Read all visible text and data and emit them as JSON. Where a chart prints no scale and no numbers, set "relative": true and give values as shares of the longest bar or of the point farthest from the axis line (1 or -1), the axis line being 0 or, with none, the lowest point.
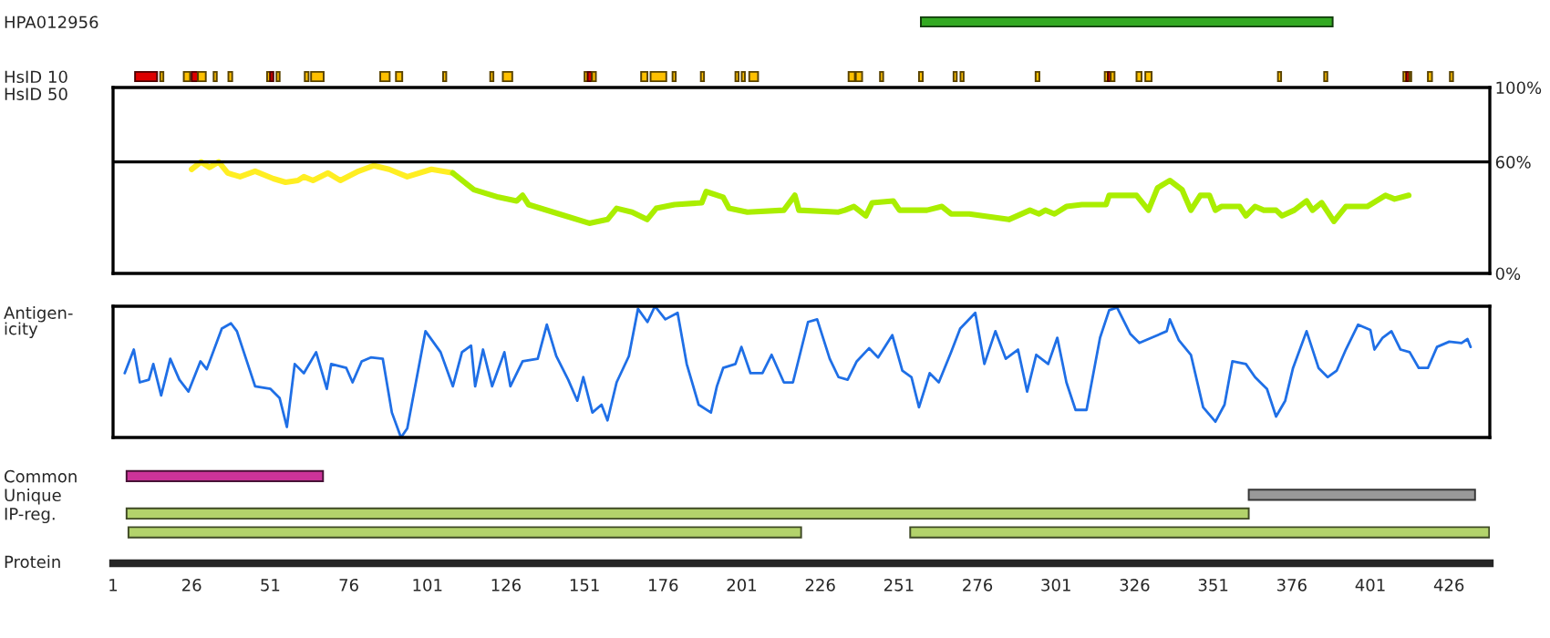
{
  "chart_data": [
    {
      "type": "bar",
      "orientation": "horizontal",
      "categories": [
        "HPA012956",
        "HsID 10"
      ],
      "xlim": [
        1,
        439
      ],
      "tick_labels": "y",
      "series": [
        {
          "color": "#33aa22",
          "values": [
            131,
            null
          ],
          "base": [
            258,
            null
          ]
        },
        {
          "color": "#dd0000",
          "values": [
            null,
            7
          ],
          "base": [
            null,
            8
          ]
        },
        {
          "color": "#ffc000",
          "values": [
            null,
            1
          ],
          "base": [
            null,
            16
          ]
        },
        {
          "color": "#ffc000",
          "values": [
            null,
            2
          ],
          "base": [
            null,
            23.5
          ]
        },
        {
          "color": "#dd0000",
          "values": [
            null,
            2
          ],
          "base": [
            null,
            26
          ]
        },
        {
          "color": "#ffc000",
          "values": [
            null,
            2.5
          ],
          "base": [
            null,
            28
          ]
        },
        {
          "color": "#ffc000",
          "values": [
            null,
            1
          ],
          "base": [
            null,
            33
          ]
        },
        {
          "color": "#ffc000",
          "values": [
            null,
            1.2
          ],
          "base": [
            null,
            37.7
          ]
        },
        {
          "color": "#ffc000",
          "values": [
            null,
            1
          ],
          "base": [
            null,
            50
          ]
        },
        {
          "color": "#dd0000",
          "values": [
            null,
            1
          ],
          "base": [
            null,
            51
          ]
        },
        {
          "color": "#ffc000",
          "values": [
            null,
            1
          ],
          "base": [
            null,
            53
          ]
        },
        {
          "color": "#ffc000",
          "values": [
            null,
            1.2
          ],
          "base": [
            null,
            62
          ]
        },
        {
          "color": "#ffc000",
          "values": [
            null,
            4
          ],
          "base": [
            null,
            64
          ]
        },
        {
          "color": "#ffc000",
          "values": [
            null,
            3
          ],
          "base": [
            null,
            86
          ]
        },
        {
          "color": "#ffc000",
          "values": [
            null,
            2
          ],
          "base": [
            null,
            91
          ]
        },
        {
          "color": "#ffc000",
          "values": [
            null,
            1
          ],
          "base": [
            null,
            106
          ]
        },
        {
          "color": "#ffc000",
          "values": [
            null,
            1
          ],
          "base": [
            null,
            121
          ]
        },
        {
          "color": "#ffc000",
          "values": [
            null,
            3
          ],
          "base": [
            null,
            125
          ]
        },
        {
          "color": "#ffc000",
          "values": [
            null,
            1
          ],
          "base": [
            null,
            151
          ]
        },
        {
          "color": "#dd0000",
          "values": [
            null,
            1.3
          ],
          "base": [
            null,
            152
          ]
        },
        {
          "color": "#ffc000",
          "values": [
            null,
            1.2
          ],
          "base": [
            null,
            153.4
          ]
        },
        {
          "color": "#ffc000",
          "values": [
            null,
            2
          ],
          "base": [
            null,
            169
          ]
        },
        {
          "color": "#ffc000",
          "values": [
            null,
            5
          ],
          "base": [
            null,
            172
          ]
        },
        {
          "color": "#ffc000",
          "values": [
            null,
            1
          ],
          "base": [
            null,
            179
          ]
        },
        {
          "color": "#ffc000",
          "values": [
            null,
            1
          ],
          "base": [
            null,
            188
          ]
        },
        {
          "color": "#ffc000",
          "values": [
            null,
            1
          ],
          "base": [
            null,
            199
          ]
        },
        {
          "color": "#ffc000",
          "values": [
            null,
            1
          ],
          "base": [
            null,
            201
          ]
        },
        {
          "color": "#ffc000",
          "values": [
            null,
            2.8
          ],
          "base": [
            null,
            203.4
          ]
        },
        {
          "color": "#ffc000",
          "values": [
            null,
            2
          ],
          "base": [
            null,
            235
          ]
        },
        {
          "color": "#ffc000",
          "values": [
            null,
            2
          ],
          "base": [
            null,
            237.3
          ]
        },
        {
          "color": "#ffc000",
          "values": [
            null,
            1
          ],
          "base": [
            null,
            245
          ]
        },
        {
          "color": "#ffc000",
          "values": [
            null,
            1.2
          ],
          "base": [
            null,
            257.4
          ]
        },
        {
          "color": "#ffc000",
          "values": [
            null,
            1
          ],
          "base": [
            null,
            268.4
          ]
        },
        {
          "color": "#ffc000",
          "values": [
            null,
            1
          ],
          "base": [
            null,
            270.6
          ]
        },
        {
          "color": "#ffc000",
          "values": [
            null,
            1.2
          ],
          "base": [
            null,
            294.5
          ]
        },
        {
          "color": "#ffc000",
          "values": [
            null,
            1
          ],
          "base": [
            null,
            316.5
          ]
        },
        {
          "color": "#dd0000",
          "values": [
            null,
            1
          ],
          "base": [
            null,
            317.5
          ]
        },
        {
          "color": "#ffc000",
          "values": [
            null,
            1.2
          ],
          "base": [
            null,
            318.4
          ]
        },
        {
          "color": "#ffc000",
          "values": [
            null,
            1.6
          ],
          "base": [
            null,
            326.6
          ]
        },
        {
          "color": "#ffc000",
          "values": [
            null,
            2
          ],
          "base": [
            null,
            329.4
          ]
        },
        {
          "color": "#ffc000",
          "values": [
            null,
            1
          ],
          "base": [
            null,
            371.6
          ]
        },
        {
          "color": "#ffc000",
          "values": [
            null,
            1
          ],
          "base": [
            null,
            386.3
          ]
        },
        {
          "color": "#ffc000",
          "values": [
            null,
            1
          ],
          "base": [
            null,
            411.5
          ]
        },
        {
          "color": "#dd0000",
          "values": [
            null,
            1
          ],
          "base": [
            null,
            412.4
          ]
        },
        {
          "color": "#ffc000",
          "values": [
            null,
            0.6
          ],
          "base": [
            null,
            413.4
          ]
        },
        {
          "color": "#ffc000",
          "values": [
            null,
            1.3
          ],
          "base": [
            null,
            419.3
          ]
        },
        {
          "color": "#ffc000",
          "values": [
            null,
            1
          ],
          "base": [
            null,
            426.3
          ]
        }
      ]
    },
    {
      "type": "line",
      "ylabel": "HsID 50",
      "xlim": [
        1,
        439
      ],
      "ylim": [
        0,
        100
      ],
      "yticks": [
        {
          "value": 0,
          "label": "0%"
        },
        {
          "value": 60,
          "label": "60%"
        },
        {
          "value": 100,
          "label": "100%"
        }
      ],
      "tick_labels": "y",
      "ref_lines": [
        {
          "axis": "y",
          "value": 60,
          "color": "#000000"
        }
      ],
      "series": [
        {
          "color": "#ffee22",
          "x": [
            26,
            29,
            31.7,
            34.6,
            37.5,
            41.4,
            46.2,
            52,
            55.9,
            59.8,
            61.7,
            64.6,
            69.4,
            73.3,
            79.1,
            84,
            88.8,
            94.6,
            102.3,
            109.1
          ],
          "values": [
            56,
            60,
            57,
            60,
            54,
            52,
            55,
            51,
            49,
            50,
            52,
            50,
            54,
            50,
            55,
            58,
            56,
            52,
            56,
            54
          ]
        },
        {
          "color": "#aaee00",
          "x": [
            109.1,
            115.8,
            123.6,
            129.4,
            131.3,
            133.2,
            142.9,
            152.5,
            158.3,
            161.2,
            166.1,
            170.9,
            173.8,
            179.6,
            188.3,
            189.7,
            195.1,
            197,
            202.8,
            214.4,
            217.9,
            219.2,
            231.8,
            233.8,
            236.7,
            240.5,
            242.5,
            249.2,
            251.2,
            259.9,
            264.7,
            267.6,
            273.4,
            286,
            292.7,
            295.6,
            297.6,
            300.5,
            304.3,
            309.2,
            316.9,
            317.9,
            326.6,
            330.4,
            333.3,
            337.2,
            341.1,
            343.9,
            346.9,
            349.8,
            351.7,
            353.6,
            359.4,
            361.4,
            364.3,
            367.1,
            371,
            372.9,
            376.8,
            380.7,
            382.6,
            385.5,
            389.4,
            393.2,
            400,
            405.8,
            408.7,
            413.2
          ],
          "values": [
            54,
            45,
            41,
            39,
            42,
            37,
            32,
            27,
            29,
            35,
            33,
            29,
            35,
            37,
            38,
            44,
            41,
            35,
            33,
            34,
            42,
            34,
            33,
            34,
            36,
            31,
            38,
            39,
            34,
            34,
            36,
            32,
            32,
            29,
            34,
            32,
            34,
            32,
            36,
            37,
            37,
            42,
            42,
            34,
            46,
            50,
            45,
            34,
            42,
            42,
            34,
            36,
            36,
            31,
            36,
            34,
            34,
            31,
            34,
            39,
            34,
            38,
            28,
            36,
            36,
            42,
            40,
            42
          ]
        }
      ]
    },
    {
      "type": "line",
      "ylabel": "Antigen-\nicity",
      "relative": true,
      "xlim": [
        1,
        439
      ],
      "tick_labels": false,
      "series": [
        {
          "color": "#1f6fe6",
          "x": [
            4.7,
            7.6,
            9.5,
            12.4,
            13.8,
            16.3,
            19.2,
            22.1,
            25,
            28.8,
            30.8,
            35.6,
            38.5,
            40.4,
            43.3,
            46.2,
            51.1,
            54,
            56.3,
            58.8,
            61.7,
            65.6,
            69,
            70.4,
            75.2,
            77.2,
            80.1,
            83,
            86.8,
            89.7,
            92.6,
            94.6,
            100.4,
            105.2,
            109.1,
            112,
            114.9,
            116.2,
            118.7,
            121.6,
            125.5,
            127.4,
            131.3,
            136.1,
            139,
            142,
            145.8,
            148.7,
            150.6,
            153.5,
            156.4,
            158.3,
            161.2,
            165.1,
            168,
            171,
            173.4,
            176.7,
            180.6,
            183.5,
            187.3,
            191.2,
            193.1,
            195.1,
            199,
            200.9,
            203.8,
            207.6,
            210.5,
            214.4,
            217.3,
            222.1,
            225,
            229,
            231.8,
            234.7,
            237.6,
            241.5,
            244.4,
            248.9,
            252.1,
            255,
            257.4,
            260.8,
            263.7,
            267.6,
            270.5,
            275.3,
            278.2,
            281.7,
            285,
            288.9,
            291.8,
            294.7,
            298.5,
            301.4,
            304.3,
            307.2,
            310.7,
            315,
            317.9,
            320.4,
            324.6,
            327.5,
            331.4,
            336.2,
            337.2,
            340.1,
            343.9,
            347.8,
            351.7,
            354.6,
            357.1,
            361.4,
            364.3,
            368.1,
            371,
            373.9,
            376.4,
            380.7,
            384.5,
            387.4,
            390.3,
            393.2,
            397.1,
            401,
            402.3,
            404.9,
            407.7,
            410.6,
            413.5,
            416.4,
            419.3,
            422.2,
            426.1,
            430,
            431.9,
            432.9
          ],
          "values": [
            0.49,
            0.67,
            0.42,
            0.44,
            0.56,
            0.32,
            0.6,
            0.44,
            0.35,
            0.58,
            0.52,
            0.83,
            0.87,
            0.81,
            0.6,
            0.39,
            0.37,
            0.3,
            0.08,
            0.56,
            0.49,
            0.65,
            0.37,
            0.56,
            0.53,
            0.42,
            0.58,
            0.61,
            0.6,
            0.19,
            0.0,
            0.07,
            0.81,
            0.65,
            0.39,
            0.65,
            0.7,
            0.39,
            0.67,
            0.39,
            0.65,
            0.39,
            0.58,
            0.6,
            0.86,
            0.62,
            0.44,
            0.28,
            0.46,
            0.19,
            0.25,
            0.13,
            0.42,
            0.62,
            0.98,
            0.88,
            1.0,
            0.9,
            0.95,
            0.56,
            0.25,
            0.19,
            0.39,
            0.53,
            0.56,
            0.69,
            0.49,
            0.49,
            0.63,
            0.42,
            0.42,
            0.88,
            0.9,
            0.6,
            0.46,
            0.44,
            0.58,
            0.68,
            0.61,
            0.78,
            0.51,
            0.46,
            0.23,
            0.49,
            0.42,
            0.65,
            0.83,
            0.95,
            0.56,
            0.81,
            0.6,
            0.67,
            0.35,
            0.63,
            0.56,
            0.76,
            0.42,
            0.21,
            0.21,
            0.76,
            0.97,
            0.99,
            0.79,
            0.72,
            0.76,
            0.81,
            0.9,
            0.74,
            0.63,
            0.23,
            0.12,
            0.25,
            0.58,
            0.56,
            0.46,
            0.37,
            0.16,
            0.28,
            0.53,
            0.81,
            0.53,
            0.46,
            0.51,
            0.67,
            0.86,
            0.82,
            0.67,
            0.76,
            0.81,
            0.67,
            0.65,
            0.53,
            0.53,
            0.69,
            0.73,
            0.72,
            0.75,
            0.69
          ]
        }
      ]
    },
    {
      "type": "bar",
      "orientation": "horizontal",
      "categories": [
        "Common",
        "Unique",
        "IP-reg.",
        null
      ],
      "xlabel": "Protein",
      "xlim": [
        1,
        439
      ],
      "xticks": [
        1,
        26,
        51,
        76,
        101,
        126,
        151,
        176,
        201,
        226,
        251,
        276,
        301,
        326,
        351,
        376,
        401,
        426
      ],
      "series": [
        {
          "colors": [
            "#cc3399",
            "#999999",
            "#b3d36b",
            "#b3d36b"
          ],
          "values": [
            62.5,
            72,
            357,
            214
          ],
          "base": [
            5.3,
            362.3,
            5.3,
            5.9
          ]
        },
        {
          "color": "#b3d36b",
          "values": [
            null,
            null,
            null,
            184.2
          ],
          "base": [
            null,
            null,
            null,
            254.6
          ]
        }
      ]
    }
  ]
}
